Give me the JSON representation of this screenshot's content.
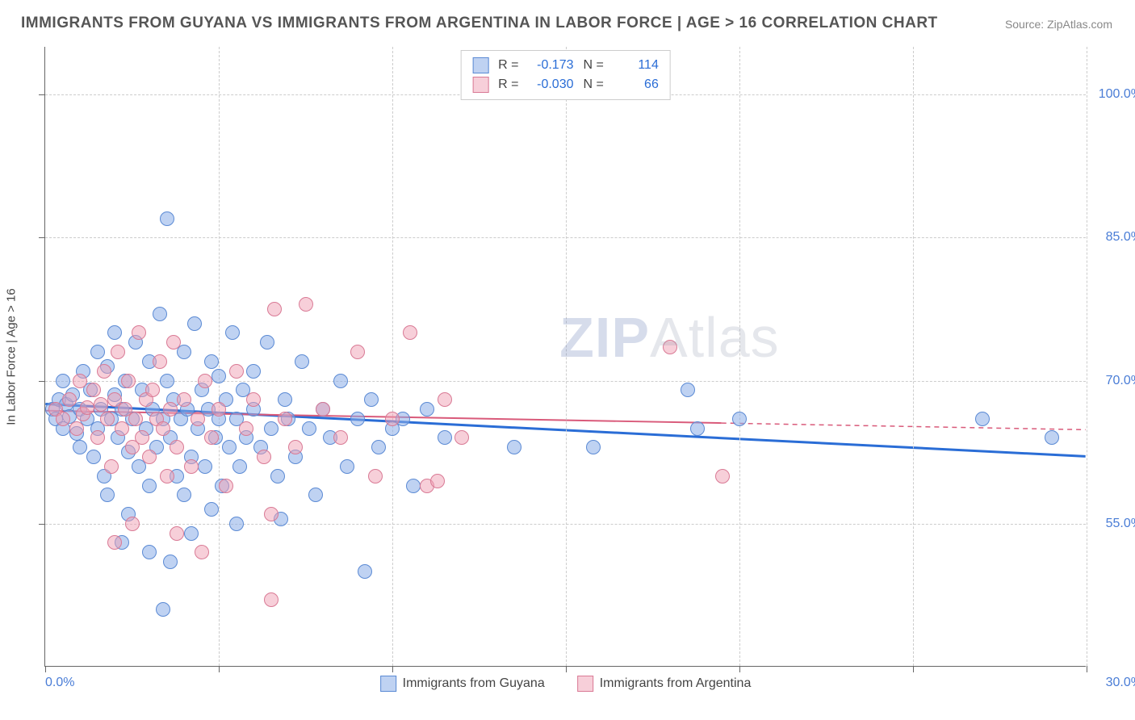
{
  "title": "IMMIGRANTS FROM GUYANA VS IMMIGRANTS FROM ARGENTINA IN LABOR FORCE | AGE > 16 CORRELATION CHART",
  "source": "Source: ZipAtlas.com",
  "y_axis_title": "In Labor Force | Age > 16",
  "watermark_bold": "ZIP",
  "watermark_light": "Atlas",
  "chart": {
    "type": "scatter",
    "xlim": [
      0,
      30
    ],
    "ylim": [
      40,
      105
    ],
    "x_ticks": [
      0,
      5,
      10,
      15,
      20,
      25,
      30
    ],
    "x_tick_labels_shown": {
      "0": "0.0%",
      "30": "30.0%"
    },
    "y_ticks": [
      55,
      70,
      85,
      100
    ],
    "y_tick_labels": {
      "55": "55.0%",
      "70": "70.0%",
      "85": "85.0%",
      "100": "100.0%"
    },
    "grid_color": "#cccccc",
    "background": "#ffffff",
    "point_radius": 9,
    "point_stroke_width": 1,
    "series": [
      {
        "name": "Immigrants from Guyana",
        "fill": "rgba(138,173,232,0.55)",
        "stroke": "#5b8ad4",
        "r_value": "-0.173",
        "n_value": "114",
        "trend": {
          "x1": 0,
          "y1": 67.5,
          "x2": 30,
          "y2": 62.0,
          "color": "#2a6dd6",
          "width": 3
        },
        "points": [
          [
            0.2,
            67
          ],
          [
            0.3,
            66
          ],
          [
            0.4,
            68
          ],
          [
            0.5,
            65
          ],
          [
            0.5,
            70
          ],
          [
            0.6,
            67.5
          ],
          [
            0.7,
            66.2
          ],
          [
            0.8,
            68.5
          ],
          [
            0.9,
            64.5
          ],
          [
            1.0,
            67
          ],
          [
            1.0,
            63
          ],
          [
            1.1,
            71
          ],
          [
            1.2,
            66
          ],
          [
            1.3,
            69
          ],
          [
            1.4,
            62
          ],
          [
            1.5,
            73
          ],
          [
            1.5,
            65
          ],
          [
            1.6,
            67
          ],
          [
            1.7,
            60
          ],
          [
            1.8,
            71.5
          ],
          [
            1.9,
            66
          ],
          [
            2.0,
            68.5
          ],
          [
            2.0,
            75
          ],
          [
            2.1,
            64
          ],
          [
            2.2,
            67
          ],
          [
            2.3,
            70
          ],
          [
            2.4,
            62.5
          ],
          [
            2.5,
            66
          ],
          [
            2.6,
            74
          ],
          [
            2.7,
            61
          ],
          [
            2.8,
            69
          ],
          [
            2.9,
            65
          ],
          [
            3.0,
            72
          ],
          [
            3.0,
            59
          ],
          [
            3.1,
            67
          ],
          [
            3.2,
            63
          ],
          [
            3.3,
            77
          ],
          [
            3.4,
            66
          ],
          [
            3.5,
            70
          ],
          [
            3.5,
            87
          ],
          [
            3.6,
            64
          ],
          [
            3.7,
            68
          ],
          [
            3.8,
            60
          ],
          [
            3.9,
            66
          ],
          [
            4.0,
            73
          ],
          [
            4.0,
            58
          ],
          [
            4.1,
            67
          ],
          [
            4.2,
            62
          ],
          [
            4.3,
            76
          ],
          [
            4.4,
            65
          ],
          [
            4.5,
            69
          ],
          [
            4.6,
            61
          ],
          [
            4.7,
            67
          ],
          [
            4.8,
            72
          ],
          [
            4.9,
            64
          ],
          [
            5.0,
            66
          ],
          [
            5.0,
            70.5
          ],
          [
            5.1,
            59
          ],
          [
            5.2,
            68
          ],
          [
            5.3,
            63
          ],
          [
            5.4,
            75
          ],
          [
            5.5,
            66
          ],
          [
            5.6,
            61
          ],
          [
            5.7,
            69
          ],
          [
            5.8,
            64
          ],
          [
            6.0,
            71
          ],
          [
            6.0,
            67
          ],
          [
            6.2,
            63
          ],
          [
            6.4,
            74
          ],
          [
            6.5,
            65
          ],
          [
            6.7,
            60
          ],
          [
            6.9,
            68
          ],
          [
            7.0,
            66
          ],
          [
            7.2,
            62
          ],
          [
            7.4,
            72
          ],
          [
            7.6,
            65
          ],
          [
            7.8,
            58
          ],
          [
            8.0,
            67
          ],
          [
            8.2,
            64
          ],
          [
            8.5,
            70
          ],
          [
            8.7,
            61
          ],
          [
            9.0,
            66
          ],
          [
            9.2,
            50
          ],
          [
            9.4,
            68
          ],
          [
            9.6,
            63
          ],
          [
            10.0,
            65
          ],
          [
            10.3,
            66
          ],
          [
            10.6,
            59
          ],
          [
            11.0,
            67
          ],
          [
            11.5,
            64
          ],
          [
            13.5,
            63
          ],
          [
            15.8,
            63
          ],
          [
            18.5,
            69
          ],
          [
            18.8,
            65
          ],
          [
            20.0,
            66
          ],
          [
            27.0,
            66
          ],
          [
            29.0,
            64
          ],
          [
            3.4,
            46
          ],
          [
            3.6,
            51
          ],
          [
            4.2,
            54
          ],
          [
            2.4,
            56
          ],
          [
            5.5,
            55
          ],
          [
            6.8,
            55.5
          ],
          [
            1.8,
            58
          ],
          [
            4.8,
            56.5
          ],
          [
            3.0,
            52
          ],
          [
            2.2,
            53
          ]
        ]
      },
      {
        "name": "Immigrants from Argentina",
        "fill": "rgba(240,160,180,0.5)",
        "stroke": "#d97a95",
        "r_value": "-0.030",
        "n_value": "66",
        "trend_solid": {
          "x1": 0,
          "y1": 66.8,
          "x2": 19.5,
          "y2": 65.5,
          "color": "#d95a7a",
          "width": 2
        },
        "trend_dashed": {
          "x1": 19.5,
          "y1": 65.5,
          "x2": 30,
          "y2": 64.8,
          "color": "#d95a7a",
          "width": 1.5
        },
        "points": [
          [
            0.3,
            67
          ],
          [
            0.5,
            66
          ],
          [
            0.7,
            68
          ],
          [
            0.9,
            65
          ],
          [
            1.0,
            70
          ],
          [
            1.1,
            66.5
          ],
          [
            1.2,
            67.2
          ],
          [
            1.4,
            69
          ],
          [
            1.5,
            64
          ],
          [
            1.6,
            67.5
          ],
          [
            1.7,
            71
          ],
          [
            1.8,
            66
          ],
          [
            1.9,
            61
          ],
          [
            2.0,
            68
          ],
          [
            2.1,
            73
          ],
          [
            2.2,
            65
          ],
          [
            2.3,
            67
          ],
          [
            2.4,
            70
          ],
          [
            2.5,
            63
          ],
          [
            2.6,
            66
          ],
          [
            2.7,
            75
          ],
          [
            2.8,
            64
          ],
          [
            2.9,
            68
          ],
          [
            3.0,
            62
          ],
          [
            3.1,
            69
          ],
          [
            3.2,
            66
          ],
          [
            3.3,
            72
          ],
          [
            3.4,
            65
          ],
          [
            3.5,
            60
          ],
          [
            3.6,
            67
          ],
          [
            3.7,
            74
          ],
          [
            3.8,
            63
          ],
          [
            4.0,
            68
          ],
          [
            4.2,
            61
          ],
          [
            4.4,
            66
          ],
          [
            4.6,
            70
          ],
          [
            4.8,
            64
          ],
          [
            5.0,
            67
          ],
          [
            5.2,
            59
          ],
          [
            5.5,
            71
          ],
          [
            5.8,
            65
          ],
          [
            6.0,
            68
          ],
          [
            6.3,
            62
          ],
          [
            6.6,
            77.5
          ],
          [
            6.9,
            66
          ],
          [
            7.2,
            63
          ],
          [
            7.5,
            78
          ],
          [
            6.5,
            56
          ],
          [
            8.0,
            67
          ],
          [
            8.5,
            64
          ],
          [
            9.0,
            73
          ],
          [
            9.5,
            60
          ],
          [
            10.0,
            66
          ],
          [
            10.5,
            75
          ],
          [
            11.0,
            59
          ],
          [
            11.3,
            59.5
          ],
          [
            11.5,
            68
          ],
          [
            12.0,
            64
          ],
          [
            18.0,
            73.5
          ],
          [
            19.5,
            60
          ],
          [
            2.0,
            53
          ],
          [
            2.5,
            55
          ],
          [
            3.8,
            54
          ],
          [
            6.5,
            47
          ],
          [
            4.5,
            52
          ]
        ]
      }
    ]
  },
  "colors": {
    "title_color": "#555555",
    "tick_label_color": "#4a7dd6",
    "stat_value_color": "#2a6dd6"
  }
}
